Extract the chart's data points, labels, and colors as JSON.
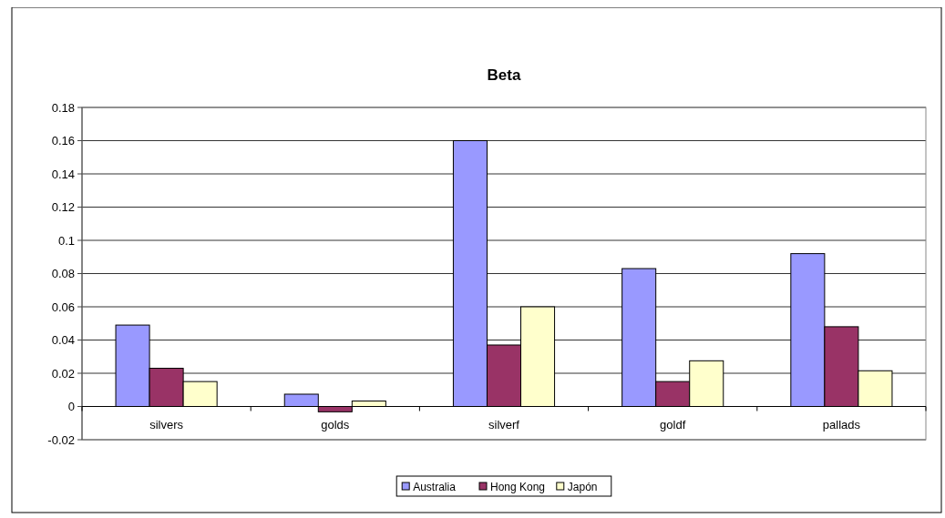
{
  "chart_data": {
    "type": "bar",
    "title": "Beta",
    "categories": [
      "silvers",
      "golds",
      "silverf",
      "goldf",
      "pallads"
    ],
    "series": [
      {
        "name": "Australia",
        "color": "#9999ff",
        "values": [
          0.049,
          0.0074,
          0.16,
          0.083,
          0.092
        ]
      },
      {
        "name": "Hong Kong",
        "color": "#993366",
        "values": [
          0.023,
          -0.0032,
          0.037,
          0.015,
          0.048
        ]
      },
      {
        "name": "Japón",
        "color": "#ffffcc",
        "values": [
          0.015,
          0.0033,
          0.06,
          0.0275,
          0.0215
        ]
      }
    ],
    "ylim": [
      -0.02,
      0.18
    ],
    "yticks": [
      -0.02,
      0,
      0.02,
      0.04,
      0.06,
      0.08,
      {
        "value": 0.1,
        "label": "0.1"
      },
      0.12,
      0.14,
      0.16,
      0.18
    ],
    "grid": "y",
    "legend": "bottom"
  }
}
